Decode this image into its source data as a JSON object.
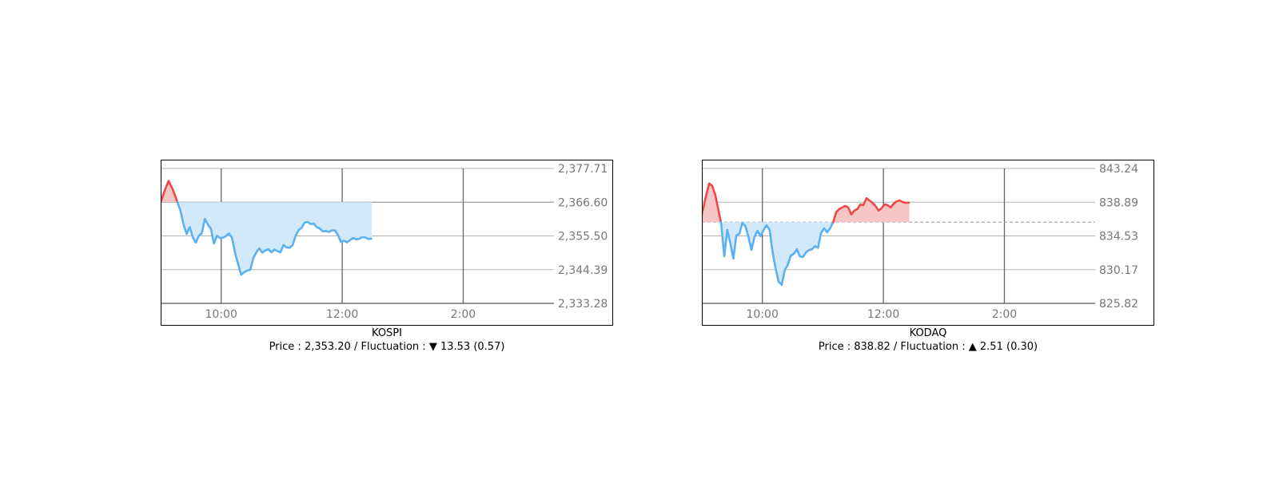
{
  "chart_data": [
    {
      "type": "line",
      "title": "KOSPI",
      "summary": {
        "price_label": "Price",
        "price": "2,353.20",
        "fluctuation_label": "Fluctuation",
        "direction": "▼",
        "change": "13.53",
        "percent": "(0.57)"
      },
      "x_ticks": [
        {
          "label": "10:00",
          "value": 10
        },
        {
          "label": "12:00",
          "value": 12
        },
        {
          "label": "2:00",
          "value": 14
        }
      ],
      "y_ticks": [
        "2,377.71",
        "2,366.60",
        "2,355.50",
        "2,344.39",
        "2,333.28"
      ],
      "ylim": [
        2333.28,
        2377.71
      ],
      "xlim": [
        9.0,
        15.5
      ],
      "reference_value": 2366.6,
      "reference_line": "solid",
      "series": [
        {
          "x": [
            9.0,
            9.07,
            9.13,
            9.2,
            9.27,
            9.33,
            9.38,
            9.43,
            9.48,
            9.53,
            9.58,
            9.63,
            9.68,
            9.73,
            9.78,
            9.83,
            9.88,
            9.93,
            9.98,
            10.03,
            10.08,
            10.13,
            10.18,
            10.23,
            10.28,
            10.33,
            10.38,
            10.43,
            10.48,
            10.53,
            10.58,
            10.63,
            10.68,
            10.73,
            10.78,
            10.83,
            10.88,
            10.93,
            10.98,
            11.03,
            11.08,
            11.13,
            11.18,
            11.23,
            11.28,
            11.33,
            11.38,
            11.43,
            11.48,
            11.53,
            11.58,
            11.63,
            11.68,
            11.73,
            11.78,
            11.83,
            11.88,
            11.93,
            11.98,
            12.03,
            12.08,
            12.13,
            12.18,
            12.23,
            12.28,
            12.33,
            12.38,
            12.43,
            12.48
          ],
          "y": [
            2366.6,
            2370.6,
            2373.6,
            2370.8,
            2367.0,
            2363.6,
            2359.1,
            2356.1,
            2358.4,
            2355.1,
            2353.3,
            2355.5,
            2356.4,
            2361.1,
            2359.2,
            2357.9,
            2353.0,
            2355.5,
            2354.8,
            2354.9,
            2355.5,
            2356.3,
            2354.8,
            2349.9,
            2346.2,
            2342.7,
            2343.5,
            2344.1,
            2344.3,
            2348.1,
            2350.1,
            2351.4,
            2350.0,
            2350.7,
            2351.1,
            2350.1,
            2351.0,
            2350.5,
            2350.1,
            2352.5,
            2351.7,
            2351.6,
            2352.4,
            2355.5,
            2357.4,
            2358.2,
            2359.9,
            2360.1,
            2359.4,
            2359.5,
            2358.4,
            2357.9,
            2357.0,
            2357.1,
            2356.8,
            2357.3,
            2357.3,
            2355.8,
            2353.5,
            2353.9,
            2353.4,
            2354.1,
            2354.8,
            2354.4,
            2354.5,
            2355.1,
            2355.0,
            2354.5,
            2354.6
          ]
        }
      ],
      "colors": {
        "up": "#f04747",
        "down": "#5ab0f0",
        "up_fill": "#f6c6c6",
        "down_fill": "#d2e9fb"
      }
    },
    {
      "type": "line",
      "title": "KODAQ",
      "summary": {
        "price_label": "Price",
        "price": "838.82",
        "fluctuation_label": "Fluctuation",
        "direction": "▲",
        "change": "2.51",
        "percent": "(0.30)"
      },
      "x_ticks": [
        {
          "label": "10:00",
          "value": 10
        },
        {
          "label": "12:00",
          "value": 12
        },
        {
          "label": "2:00",
          "value": 14
        }
      ],
      "y_ticks": [
        "843.24",
        "838.89",
        "834.53",
        "830.17",
        "825.82"
      ],
      "ylim": [
        825.82,
        843.24
      ],
      "xlim": [
        9.0,
        15.5
      ],
      "reference_value": 836.31,
      "reference_line": "dashed",
      "series": [
        {
          "x": [
            9.0,
            9.06,
            9.12,
            9.17,
            9.22,
            9.27,
            9.32,
            9.37,
            9.42,
            9.47,
            9.52,
            9.57,
            9.62,
            9.67,
            9.72,
            9.77,
            9.82,
            9.87,
            9.92,
            9.97,
            10.02,
            10.07,
            10.12,
            10.17,
            10.22,
            10.27,
            10.32,
            10.37,
            10.42,
            10.47,
            10.52,
            10.57,
            10.62,
            10.67,
            10.72,
            10.77,
            10.82,
            10.87,
            10.92,
            10.97,
            11.02,
            11.07,
            11.12,
            11.17,
            11.22,
            11.27,
            11.32,
            11.37,
            11.42,
            11.47,
            11.52,
            11.57,
            11.62,
            11.67,
            11.72,
            11.77,
            11.82,
            11.87,
            11.92,
            11.97,
            12.02,
            12.07,
            12.12,
            12.17,
            12.22,
            12.27,
            12.32,
            12.37,
            12.42
          ],
          "y": [
            837.3,
            839.4,
            841.3,
            841.0,
            839.9,
            838.0,
            836.1,
            831.9,
            835.3,
            833.6,
            831.6,
            834.6,
            834.8,
            836.2,
            835.8,
            834.4,
            832.7,
            834.4,
            835.2,
            834.5,
            835.3,
            835.9,
            835.3,
            832.4,
            830.3,
            828.6,
            828.2,
            830.1,
            830.8,
            832.0,
            832.2,
            832.8,
            831.9,
            831.8,
            832.4,
            832.7,
            832.8,
            833.2,
            833.0,
            834.9,
            835.5,
            835.0,
            835.5,
            836.3,
            837.6,
            838.0,
            838.2,
            838.4,
            838.2,
            837.3,
            837.8,
            838.0,
            838.6,
            838.5,
            839.4,
            839.1,
            838.8,
            838.4,
            837.8,
            838.1,
            838.6,
            838.5,
            838.2,
            838.7,
            839.0,
            839.1,
            838.9,
            838.8,
            838.82
          ]
        }
      ],
      "colors": {
        "up": "#f04747",
        "down": "#5ab0f0",
        "up_fill": "#f6c6c6",
        "down_fill": "#d2e9fb"
      }
    }
  ]
}
